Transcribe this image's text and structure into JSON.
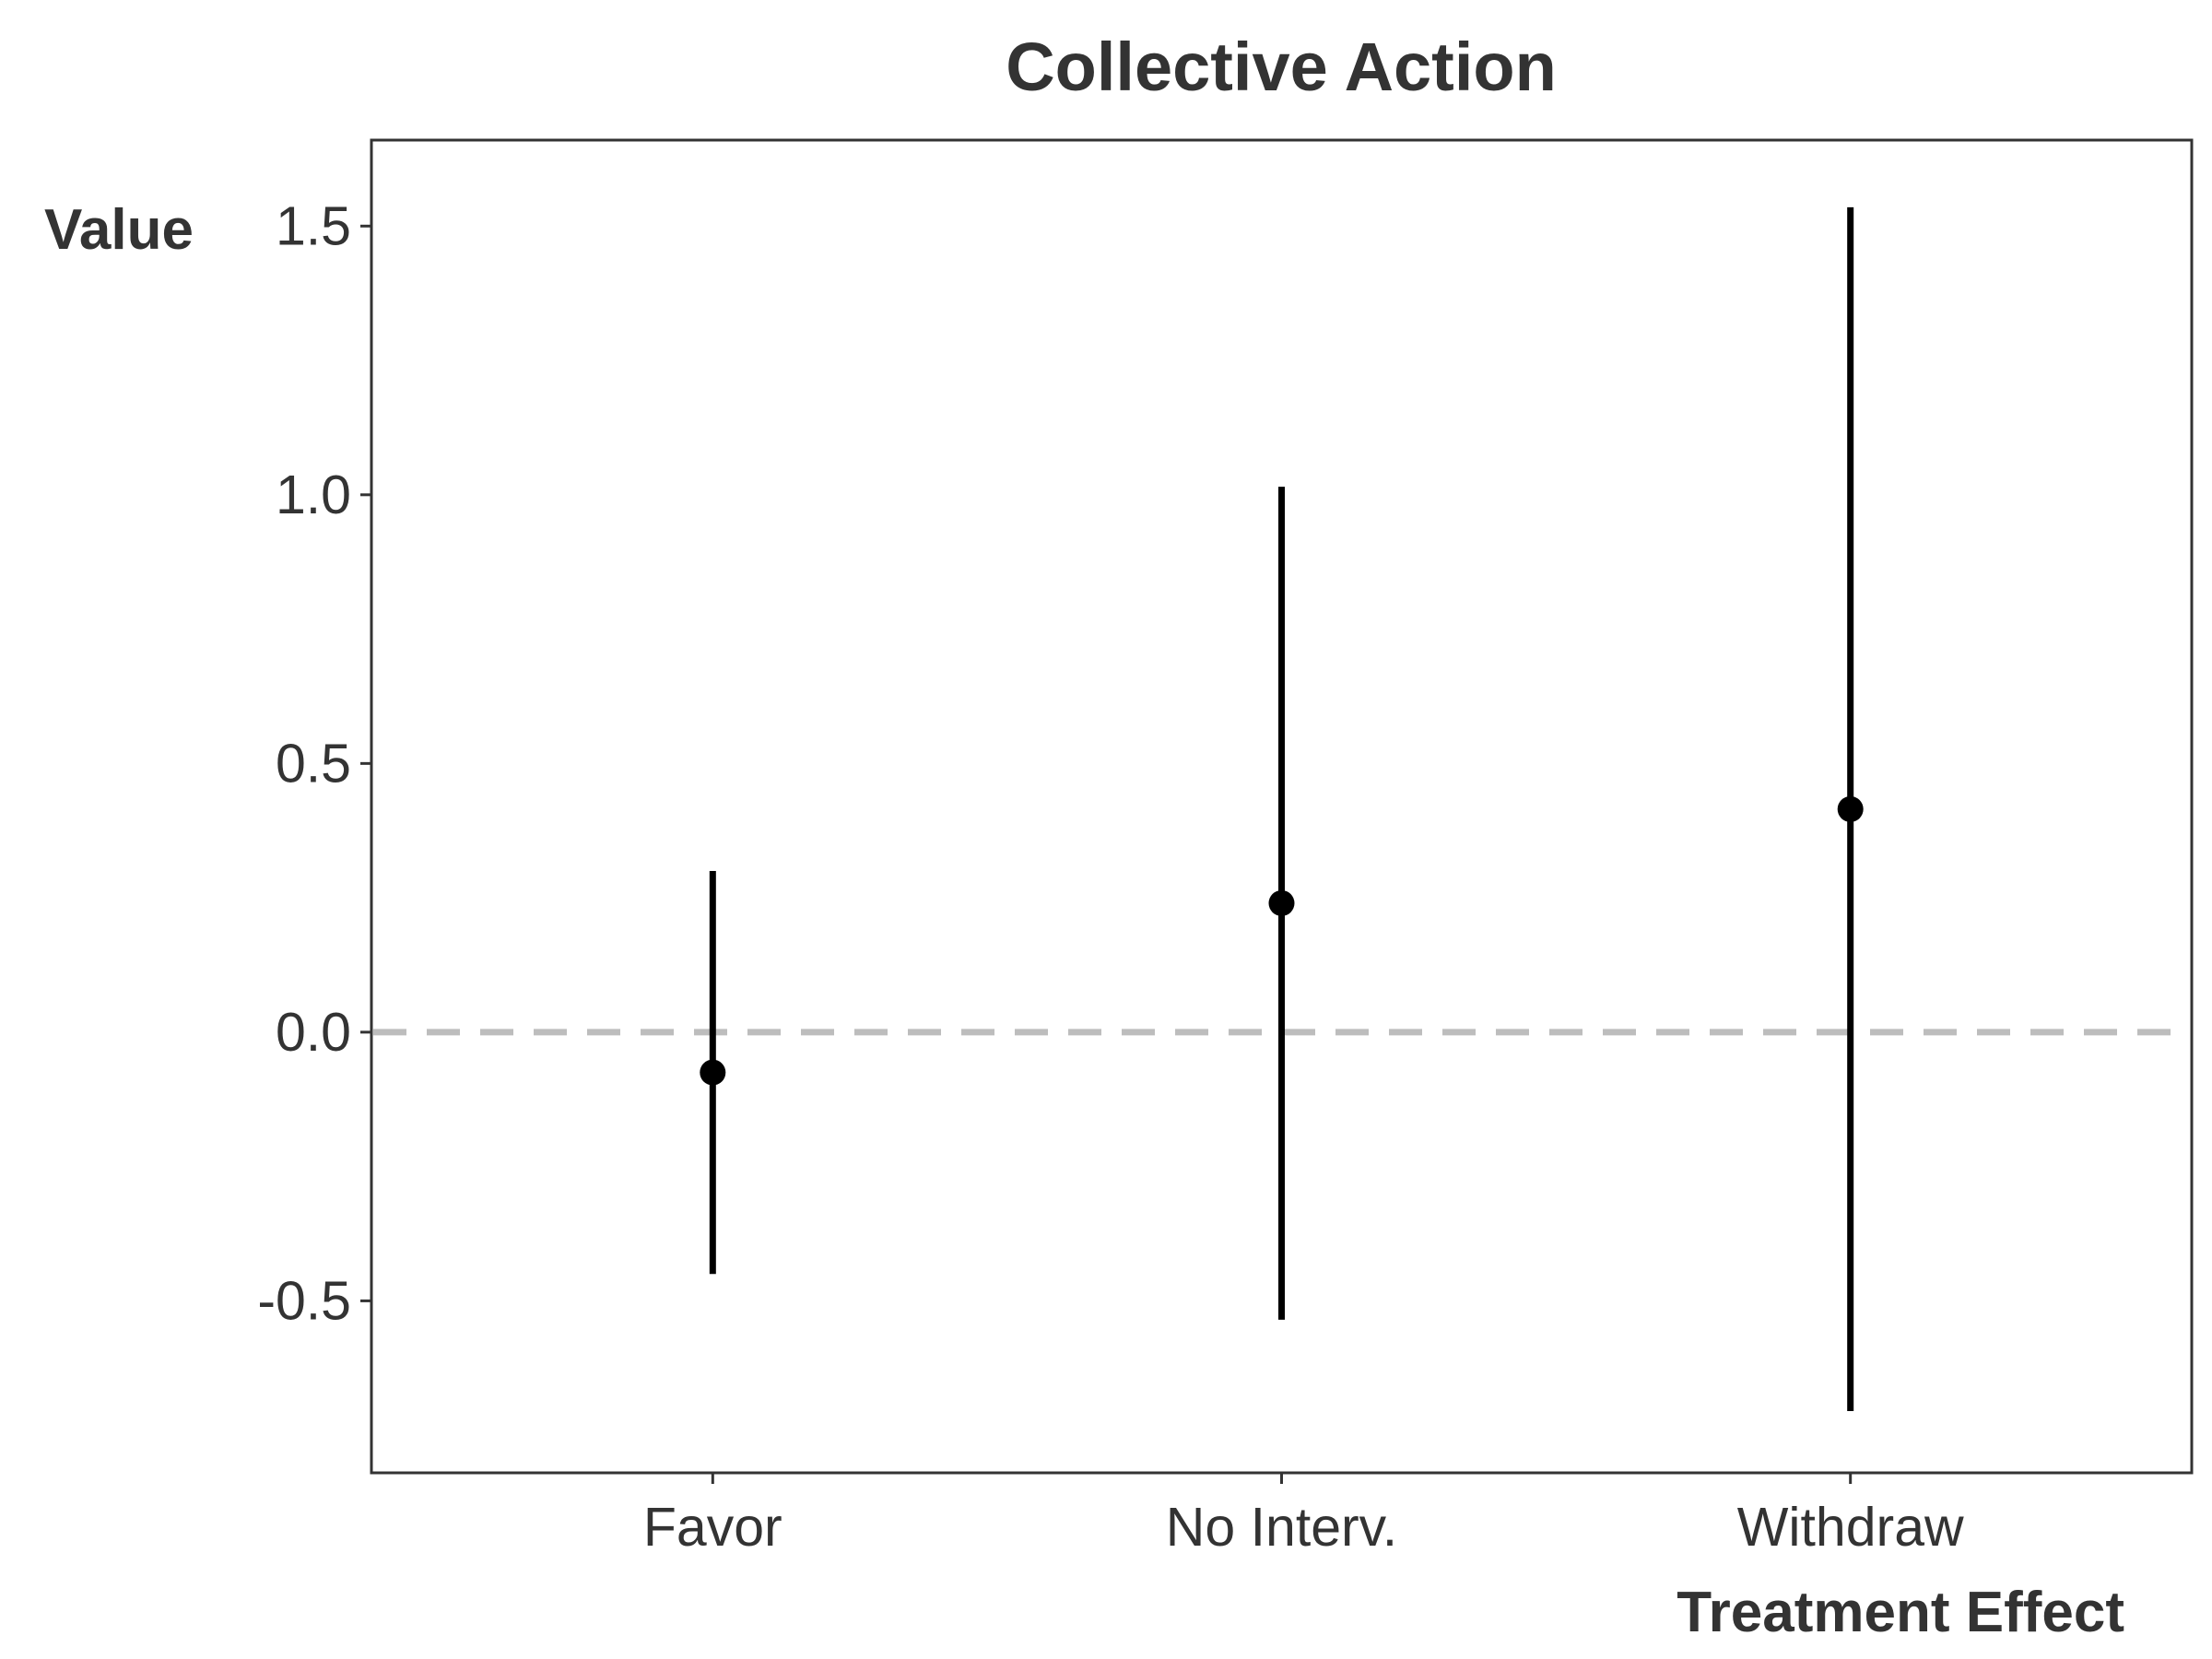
{
  "chart_data": {
    "type": "scatter",
    "title": "Collective Action",
    "xlabel": "Treatment Effect",
    "ylabel": "Value",
    "categories": [
      "Favor",
      "No Interv.",
      "Withdraw"
    ],
    "estimates": [
      -0.075,
      0.24,
      0.415
    ],
    "lower": [
      -0.45,
      -0.535,
      -0.705
    ],
    "upper": [
      0.3,
      1.015,
      1.535
    ],
    "y_ticks": [
      -0.5,
      0.0,
      0.5,
      1.0,
      1.5
    ],
    "y_tick_labels": [
      "-0.5",
      "0.0",
      "0.5",
      "1.0",
      "1.5"
    ],
    "ylim": [
      -0.82,
      1.66
    ],
    "reference_line": 0,
    "grid": false,
    "legend": "none",
    "colors": {
      "marks": "#000000",
      "reference_line": "#bdbdbd",
      "text": "#333333",
      "frame": "#333333"
    }
  }
}
